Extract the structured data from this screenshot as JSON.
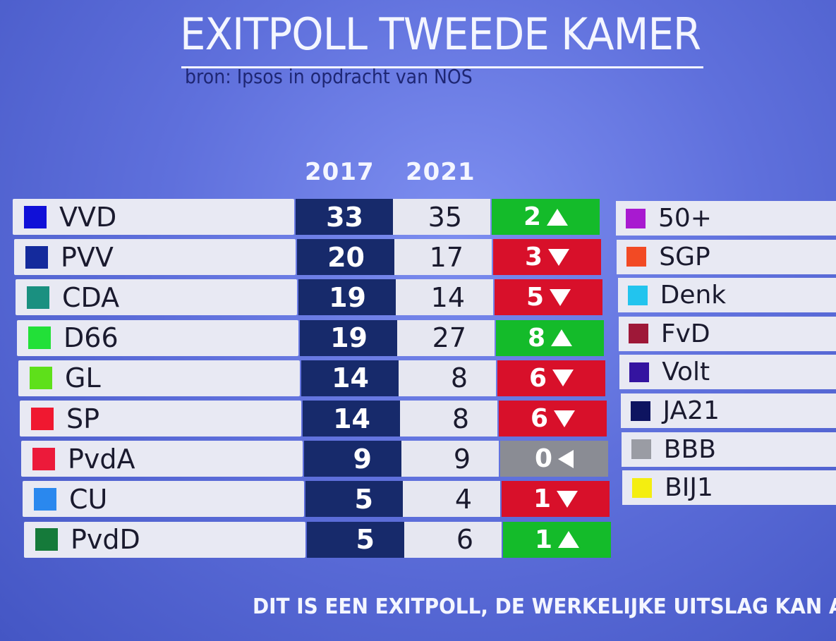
{
  "header": {
    "title": "EXITPOLL TWEEDE KAMER",
    "subtitle": "bron: Ipsos in opdracht van NOS"
  },
  "chart_data": {
    "type": "table",
    "title": "EXITPOLL TWEEDE KAMER",
    "subtitle": "bron: Ipsos in opdracht van NOS",
    "columns": [
      "2017",
      "2021"
    ],
    "parties": [
      {
        "name": "VVD",
        "color": "#1010d8",
        "seats_2017": 33,
        "seats_2021": 35,
        "change": 2,
        "direction": "up",
        "change_color": "#14bb2a"
      },
      {
        "name": "PVV",
        "color": "#142a9c",
        "seats_2017": 20,
        "seats_2021": 17,
        "change": 3,
        "direction": "down",
        "change_color": "#d8102a"
      },
      {
        "name": "CDA",
        "color": "#1a9080",
        "seats_2017": 19,
        "seats_2021": 14,
        "change": 5,
        "direction": "down",
        "change_color": "#d8102a"
      },
      {
        "name": "D66",
        "color": "#22e038",
        "seats_2017": 19,
        "seats_2021": 27,
        "change": 8,
        "direction": "up",
        "change_color": "#14bb2a"
      },
      {
        "name": "GL",
        "color": "#5ee01a",
        "seats_2017": 14,
        "seats_2021": 8,
        "change": 6,
        "direction": "down",
        "change_color": "#d8102a"
      },
      {
        "name": "SP",
        "color": "#f01830",
        "seats_2017": 14,
        "seats_2021": 8,
        "change": 6,
        "direction": "down",
        "change_color": "#d8102a"
      },
      {
        "name": "PvdA",
        "color": "#ec1a3a",
        "seats_2017": 9,
        "seats_2021": 9,
        "change": 0,
        "direction": "same",
        "change_color": "#8a8c94"
      },
      {
        "name": "CU",
        "color": "#2a88ee",
        "seats_2017": 5,
        "seats_2021": 4,
        "change": 1,
        "direction": "down",
        "change_color": "#d8102a"
      },
      {
        "name": "PvdD",
        "color": "#157a3a",
        "seats_2017": 5,
        "seats_2021": 6,
        "change": 1,
        "direction": "up",
        "change_color": "#14bb2a"
      }
    ],
    "other_parties": [
      {
        "name": "50+",
        "color": "#a81ad0"
      },
      {
        "name": "SGP",
        "color": "#f24a24"
      },
      {
        "name": "Denk",
        "color": "#22c4ee"
      },
      {
        "name": "FvD",
        "color": "#9e1838"
      },
      {
        "name": "Volt",
        "color": "#3414a0"
      },
      {
        "name": "JA21",
        "color": "#0e1460"
      },
      {
        "name": "BBB",
        "color": "#9a9ca4"
      },
      {
        "name": "BIJ1",
        "color": "#f4ee10"
      }
    ]
  },
  "footer": {
    "disclaimer": "DIT IS EEN EXITPOLL, DE WERKELIJKE UITSLAG KAN A"
  }
}
